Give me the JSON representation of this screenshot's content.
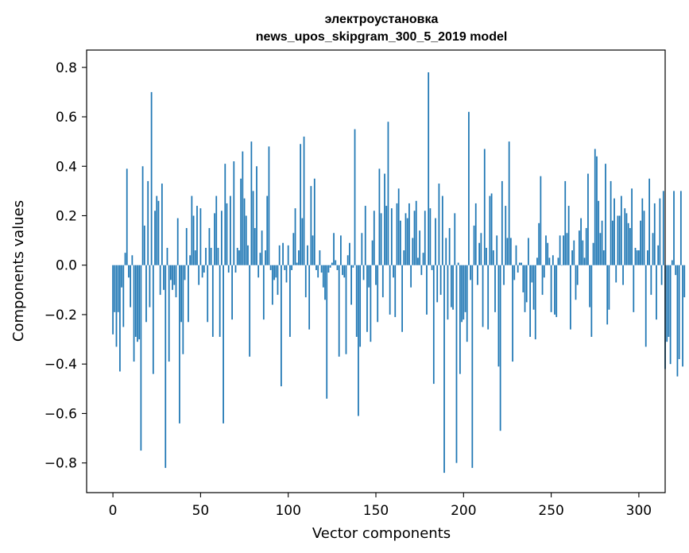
{
  "chart_data": {
    "type": "bar",
    "title": "электроустановка",
    "subtitle": "news_upos_skipgram_300_5_2019 model",
    "xlabel": "Vector components",
    "ylabel": "Components values",
    "xlim": [
      -15,
      315
    ],
    "ylim": [
      -0.92,
      0.87
    ],
    "grid": false,
    "bar_color": "#1f77b4",
    "x_ticks": [
      0,
      50,
      100,
      150,
      200,
      250,
      300
    ],
    "x_tick_labels": [
      "0",
      "50",
      "100",
      "150",
      "200",
      "250",
      "300"
    ],
    "y_ticks": [
      -0.8,
      -0.6,
      -0.4,
      -0.2,
      0.0,
      0.2,
      0.4,
      0.6,
      0.8
    ],
    "y_tick_labels": [
      "−0.8",
      "−0.6",
      "−0.4",
      "−0.2",
      "0.0",
      "0.2",
      "0.4",
      "0.6",
      "0.8"
    ],
    "values": [
      -0.28,
      -0.19,
      -0.33,
      -0.19,
      -0.43,
      -0.09,
      -0.25,
      0.05,
      0.39,
      -0.05,
      -0.17,
      0.04,
      -0.39,
      -0.29,
      -0.31,
      -0.3,
      -0.75,
      0.4,
      0.16,
      -0.23,
      0.34,
      -0.17,
      0.7,
      -0.44,
      0.22,
      0.28,
      0.26,
      -0.12,
      0.33,
      -0.1,
      -0.82,
      0.07,
      -0.39,
      -0.06,
      -0.1,
      -0.08,
      -0.13,
      0.19,
      -0.64,
      -0.23,
      -0.36,
      -0.06,
      0.15,
      -0.23,
      0.04,
      0.28,
      0.2,
      0.06,
      0.24,
      -0.08,
      0.23,
      -0.05,
      -0.03,
      0.07,
      -0.23,
      0.15,
      0.07,
      -0.29,
      0.21,
      0.28,
      0.07,
      -0.29,
      0.22,
      -0.64,
      0.41,
      0.25,
      -0.03,
      0.28,
      -0.22,
      0.42,
      -0.03,
      0.07,
      0.06,
      0.35,
      0.46,
      0.27,
      0.2,
      0.08,
      -0.37,
      0.5,
      0.3,
      0.15,
      0.4,
      -0.05,
      0.05,
      0.14,
      -0.22,
      0.06,
      0.28,
      0.48,
      -0.02,
      -0.16,
      -0.06,
      -0.05,
      -0.12,
      0.08,
      -0.49,
      0.09,
      -0.02,
      -0.07,
      0.08,
      -0.29,
      -0.02,
      0.13,
      0.23,
      0.01,
      0.06,
      0.49,
      0.19,
      0.52,
      -0.13,
      0.08,
      -0.26,
      0.32,
      0.12,
      0.35,
      -0.02,
      -0.05,
      0.06,
      -0.03,
      -0.09,
      -0.14,
      -0.54,
      -0.03,
      -0.01,
      0.01,
      0.13,
      0.02,
      -0.02,
      -0.37,
      0.12,
      -0.04,
      -0.05,
      -0.36,
      0.04,
      0.09,
      -0.16,
      -0.01,
      0.55,
      -0.29,
      -0.61,
      -0.33,
      0.13,
      -0.06,
      0.24,
      -0.27,
      -0.09,
      -0.31,
      0.1,
      0.22,
      -0.08,
      -0.23,
      0.39,
      0.21,
      -0.13,
      0.37,
      0.24,
      0.58,
      -0.2,
      0.23,
      -0.05,
      -0.21,
      0.25,
      0.31,
      0.18,
      -0.27,
      0.06,
      0.21,
      0.19,
      0.25,
      -0.09,
      0.11,
      0.22,
      0.26,
      0.03,
      0.14,
      -0.04,
      0.05,
      0.22,
      -0.2,
      0.78,
      0.23,
      -0.02,
      -0.48,
      0.19,
      -0.15,
      0.33,
      -0.12,
      0.28,
      -0.84,
      0.11,
      -0.22,
      0.15,
      -0.17,
      -0.18,
      0.21,
      -0.8,
      0.01,
      -0.44,
      -0.23,
      -0.22,
      -0.19,
      -0.31,
      0.62,
      -0.06,
      -0.82,
      0.16,
      0.25,
      -0.08,
      0.09,
      0.13,
      -0.25,
      0.47,
      0.07,
      -0.26,
      0.28,
      0.29,
      0.06,
      -0.19,
      0.12,
      -0.41,
      -0.67,
      0.34,
      -0.08,
      0.24,
      0.11,
      0.5,
      0.11,
      -0.39,
      -0.06,
      0.08,
      -0.03,
      0.01,
      0.01,
      -0.11,
      -0.19,
      -0.15,
      0.11,
      -0.29,
      -0.07,
      -0.18,
      -0.3,
      0.03,
      0.17,
      0.36,
      -0.12,
      -0.05,
      0.12,
      0.09,
      0.03,
      -0.19,
      0.04,
      -0.2,
      -0.21,
      0.03,
      0.12,
      0.0,
      0.12,
      0.34,
      0.13,
      0.24,
      -0.26,
      0.06,
      0.1,
      -0.14,
      -0.08,
      0.14,
      0.19,
      0.1,
      0.03,
      0.15,
      0.37,
      -0.17,
      -0.29,
      0.09,
      0.47,
      0.44,
      0.26,
      0.13,
      0.18,
      0.06,
      0.41,
      -0.24,
      -0.18,
      0.34,
      0.18,
      0.27,
      -0.07,
      0.2,
      0.2,
      0.28,
      -0.08,
      0.23,
      0.21,
      0.17,
      0.15,
      0.31,
      -0.19,
      0.07,
      0.06,
      0.06,
      0.18,
      0.27,
      0.22,
      -0.33,
      0.06,
      0.35,
      -0.12,
      0.13,
      0.25,
      -0.22,
      0.08,
      0.27,
      -0.08,
      0.3,
      -0.42,
      -0.31,
      -0.29,
      -0.4,
      0.02,
      0.3,
      -0.04,
      -0.45,
      -0.38,
      0.3,
      -0.41,
      -0.13
    ]
  }
}
